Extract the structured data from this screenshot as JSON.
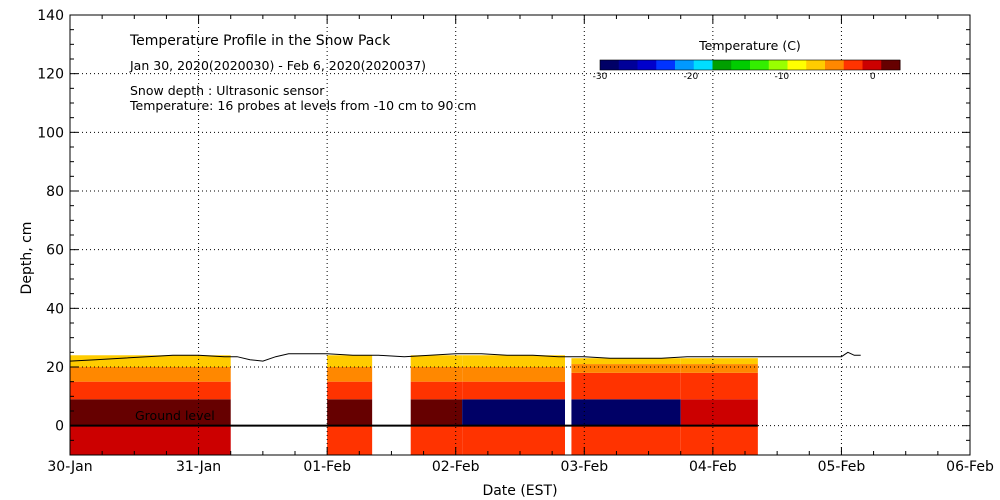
{
  "chart_data": {
    "type": "heatmap",
    "title": "Temperature Profile in the Snow Pack",
    "subtitle": "Jan 30, 2020(2020030) - Feb  6, 2020(2020037)",
    "info_lines": [
      "Snow depth : Ultrasonic sensor",
      "Temperature: 16 probes at levels from -10 cm to 90 cm"
    ],
    "xlabel": "Date (EST)",
    "ylabel": "Depth, cm",
    "x_ticks": [
      "30-Jan",
      "31-Jan",
      "01-Feb",
      "02-Feb",
      "03-Feb",
      "04-Feb",
      "05-Feb",
      "06-Feb"
    ],
    "xlim_days": [
      0,
      7
    ],
    "ylim": [
      -10,
      140
    ],
    "y_ticks": [
      0,
      20,
      40,
      60,
      80,
      100,
      120,
      140
    ],
    "grid": true,
    "ground_label": "Ground level",
    "colorbar": {
      "title": "Temperature (C)",
      "ticks": [
        "-30",
        "-20",
        "-10",
        "0"
      ],
      "range": [
        -30,
        3
      ],
      "colors": [
        "#000066",
        "#000099",
        "#0000cc",
        "#0033ff",
        "#0099ff",
        "#00ddff",
        "#00a000",
        "#00cc00",
        "#33ee00",
        "#99ff00",
        "#ffff00",
        "#ffcc00",
        "#ff8800",
        "#ff3300",
        "#cc0000",
        "#660000"
      ]
    },
    "temperature_bands": [
      {
        "start": 0.0,
        "end": 1.25,
        "layers": [
          {
            "from": -10,
            "to": 0,
            "temp": -1
          },
          {
            "from": 0,
            "to": 9,
            "temp": 1
          },
          {
            "from": 9,
            "to": 15,
            "temp": -2.5
          },
          {
            "from": 15,
            "to": 20,
            "temp": -4
          },
          {
            "from": 20,
            "to": 24,
            "temp": -6
          }
        ]
      },
      {
        "start": 2.0,
        "end": 2.35,
        "layers": [
          {
            "from": -10,
            "to": 0,
            "temp": -2.5
          },
          {
            "from": 0,
            "to": 9,
            "temp": 1
          },
          {
            "from": 9,
            "to": 15,
            "temp": -2.5
          },
          {
            "from": 15,
            "to": 20,
            "temp": -4
          },
          {
            "from": 20,
            "to": 24,
            "temp": -6
          }
        ]
      },
      {
        "start": 2.65,
        "end": 3.05,
        "layers": [
          {
            "from": -10,
            "to": 0,
            "temp": -2.5
          },
          {
            "from": 0,
            "to": 9,
            "temp": 1
          },
          {
            "from": 9,
            "to": 15,
            "temp": -2.5
          },
          {
            "from": 15,
            "to": 20,
            "temp": -4
          },
          {
            "from": 20,
            "to": 24,
            "temp": -6
          }
        ]
      },
      {
        "start": 3.05,
        "end": 3.85,
        "layers": [
          {
            "from": -10,
            "to": 0,
            "temp": -2.5
          },
          {
            "from": 0,
            "to": 9,
            "temp": -28
          },
          {
            "from": 9,
            "to": 15,
            "temp": -2.5
          },
          {
            "from": 15,
            "to": 20,
            "temp": -4
          },
          {
            "from": 20,
            "to": 24,
            "temp": -6
          }
        ]
      },
      {
        "start": 3.9,
        "end": 4.75,
        "layers": [
          {
            "from": -10,
            "to": 0,
            "temp": -2.5
          },
          {
            "from": 0,
            "to": 9,
            "temp": -28
          },
          {
            "from": 9,
            "to": 18,
            "temp": -2.5
          },
          {
            "from": 18,
            "to": 21,
            "temp": -4
          },
          {
            "from": 21,
            "to": 23,
            "temp": -6
          }
        ]
      },
      {
        "start": 4.75,
        "end": 5.35,
        "layers": [
          {
            "from": -10,
            "to": 0,
            "temp": -2.5
          },
          {
            "from": 0,
            "to": 9,
            "temp": -0.5
          },
          {
            "from": 9,
            "to": 18,
            "temp": -2.5
          },
          {
            "from": 18,
            "to": 21,
            "temp": -4
          },
          {
            "from": 21,
            "to": 23,
            "temp": -6
          }
        ]
      }
    ],
    "snow_depth_series": {
      "x_days": [
        0.0,
        0.2,
        0.4,
        0.6,
        0.8,
        1.0,
        1.2,
        1.3,
        1.4,
        1.5,
        1.6,
        1.7,
        1.8,
        2.0,
        2.2,
        2.4,
        2.6,
        2.8,
        3.0,
        3.2,
        3.4,
        3.6,
        3.8,
        4.0,
        4.2,
        4.4,
        4.6,
        4.8,
        5.0,
        5.2,
        5.4,
        5.6,
        5.8,
        6.0,
        6.05,
        6.1,
        6.15
      ],
      "y_cm": [
        22,
        22.5,
        23,
        23.5,
        24,
        24,
        23.5,
        23.5,
        22.5,
        22,
        23.5,
        24.5,
        24.5,
        24.5,
        24,
        24,
        23.5,
        24,
        24.5,
        24.5,
        24,
        24,
        23.5,
        23.5,
        23,
        23,
        23,
        23.5,
        23.5,
        23.5,
        23.5,
        23.5,
        23.5,
        23.5,
        25,
        24,
        24
      ]
    }
  }
}
